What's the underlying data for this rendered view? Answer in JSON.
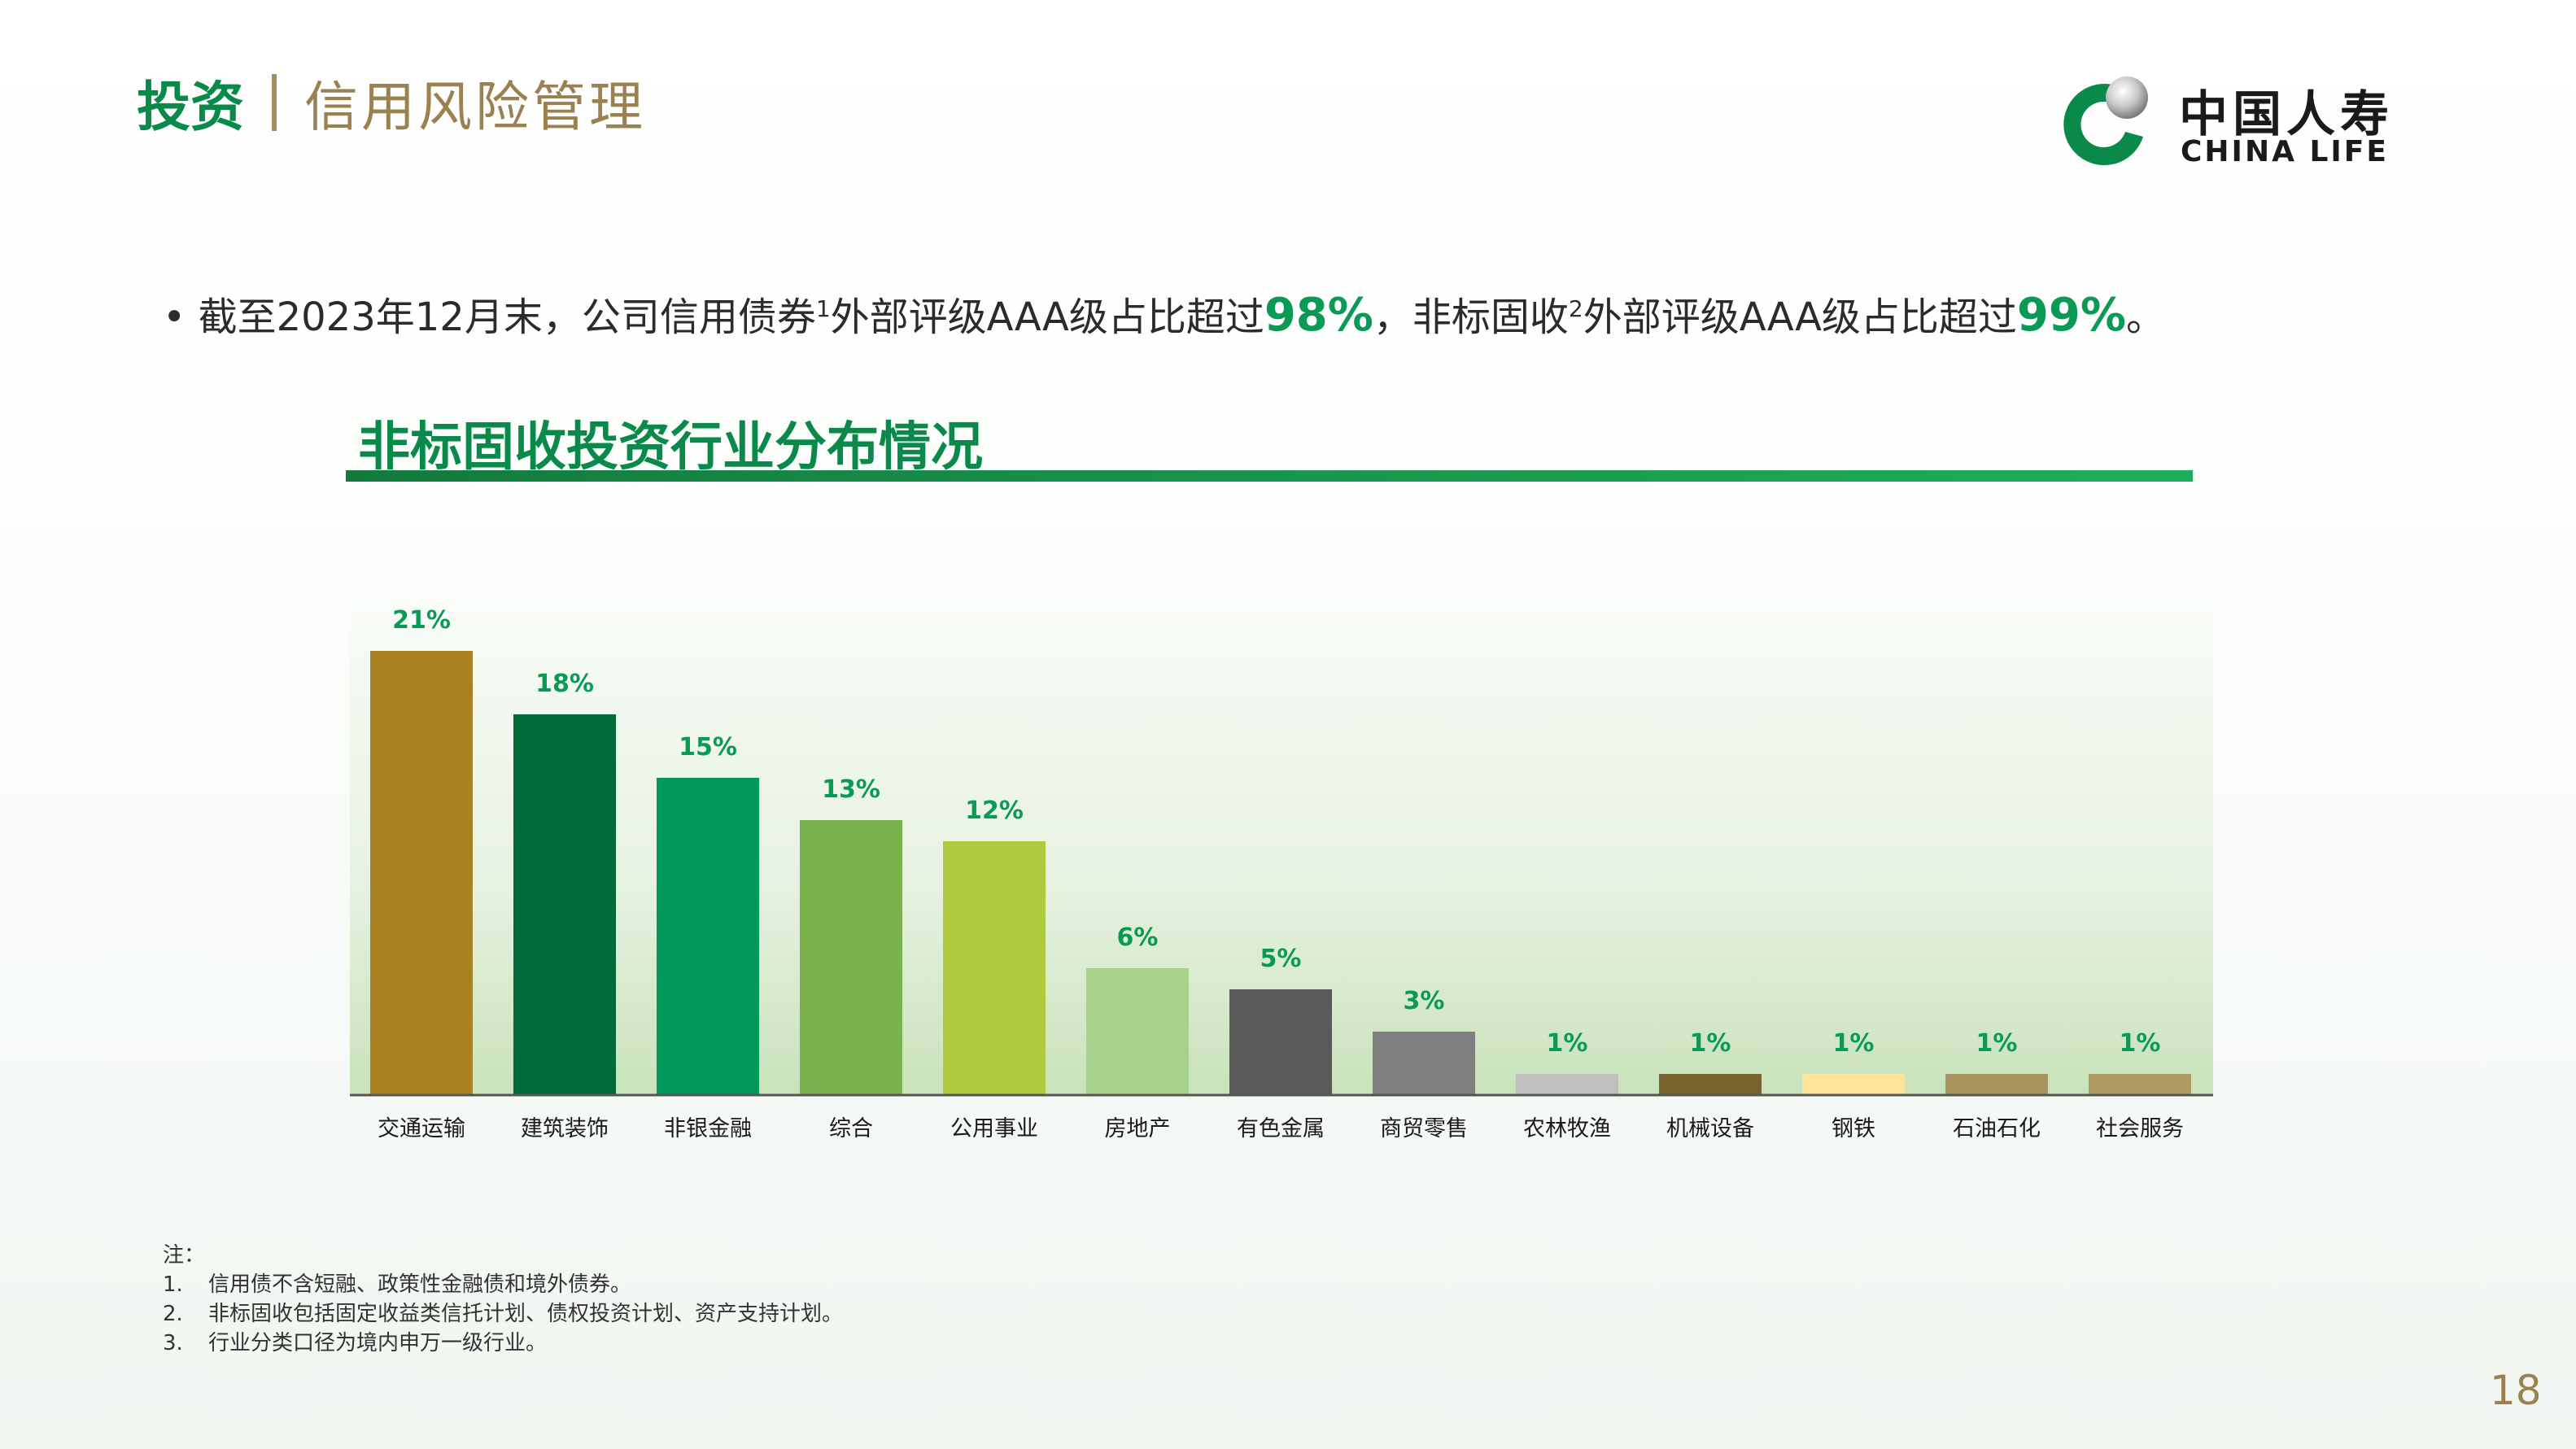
{
  "header": {
    "section": "投资",
    "subtitle": "信用风险管理"
  },
  "logo": {
    "cn": "中国人寿",
    "en": "CHINA LIFE"
  },
  "bullet": {
    "dot": "•",
    "p1": "截至2023年12月末，公司信用债券",
    "sup1": "1",
    "p2": "外部评级AAA级占比超过",
    "hl1": "98%",
    "p3": "，非标固收",
    "sup2": "2",
    "p4": "外部评级AAA级占比超过",
    "hl2": "99%",
    "p5": "。"
  },
  "chart_data": {
    "type": "bar",
    "title": "非标固收投资行业分布情况",
    "categories": [
      "交通运输",
      "建筑装饰",
      "非银金融",
      "综合",
      "公用事业",
      "房地产",
      "有色金属",
      "商贸零售",
      "农林牧渔",
      "机械设备",
      "钢铁",
      "石油石化",
      "社会服务"
    ],
    "values": [
      21,
      18,
      15,
      13,
      12,
      6,
      5,
      3,
      1,
      1,
      1,
      1,
      1
    ],
    "value_labels": [
      "21%",
      "18%",
      "15%",
      "13%",
      "12%",
      "6%",
      "5%",
      "3%",
      "1%",
      "1%",
      "1%",
      "1%",
      "1%"
    ],
    "colors": [
      "#a88223",
      "#006b38",
      "#00995a",
      "#7ab24e",
      "#afca3f",
      "#a8d28c",
      "#595959",
      "#7f7f7f",
      "#bfbfbf",
      "#7b6330",
      "#ffe59a",
      "#a8945f",
      "#b09a63"
    ],
    "ylim": [
      0,
      21
    ],
    "value_label_color": "#0a9a55",
    "xlabel": "",
    "ylabel": "",
    "grid": false,
    "legend": "none"
  },
  "notes": {
    "heading": "注：",
    "items": [
      {
        "num": "1.",
        "text": "信用债不含短融、政策性金融债和境外债券。"
      },
      {
        "num": "2.",
        "text": "非标固收包括固定收益类信托计划、债权投资计划、资产支持计划。"
      },
      {
        "num": "3.",
        "text": "行业分类口径为境内申万一级行业。"
      }
    ]
  },
  "page_number": "18",
  "colors": {
    "brand_green": "#0a8a4a",
    "gold": "#9c8150",
    "highlight_green": "#0a9a55"
  }
}
